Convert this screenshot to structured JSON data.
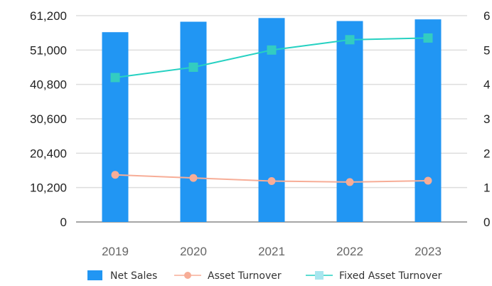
{
  "chart_data": {
    "type": "bar",
    "categories": [
      "2019",
      "2020",
      "2021",
      "2022",
      "2023"
    ],
    "series": [
      {
        "name": "Net Sales",
        "type": "bar",
        "axis": "left",
        "values": [
          56300,
          59400,
          60500,
          59600,
          60100
        ]
      },
      {
        "name": "Asset Turnover",
        "type": "line",
        "axis": "right",
        "values": [
          1.37,
          1.28,
          1.19,
          1.16,
          1.2
        ]
      },
      {
        "name": "Fixed Asset Turnover",
        "type": "line",
        "axis": "right",
        "values": [
          4.2,
          4.5,
          5.0,
          5.3,
          5.35
        ]
      }
    ],
    "y_left": {
      "ticks": [
        "0",
        "10,200",
        "20,400",
        "30,600",
        "40,800",
        "51,000",
        "61,200"
      ],
      "lim": [
        0,
        61200
      ]
    },
    "y_right": {
      "ticks": [
        "0",
        "1",
        "2",
        "3",
        "4",
        "5",
        "6"
      ],
      "lim": [
        0,
        6
      ]
    },
    "grid": true,
    "legend_position": "bottom",
    "colors": {
      "Net Sales": "#2196f3",
      "Asset Turnover": "#f7ad97",
      "Fixed Asset Turnover": "#26d1c2",
      "fixed_marker_fill": "#33ccc1",
      "legend_fixed_marker": "#a8e6ef",
      "grid": "#dddddd",
      "axis": "#888888"
    }
  }
}
